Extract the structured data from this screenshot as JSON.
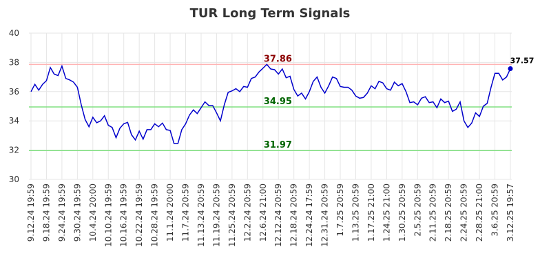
{
  "chart_data": {
    "type": "line",
    "title": "TUR Long Term Signals",
    "categories": [
      "9.12.24 19:59",
      null,
      null,
      null,
      "9.18.24 19:59",
      null,
      null,
      null,
      "9.24.24 19:59",
      null,
      null,
      null,
      "9.30.24 19:59",
      null,
      null,
      null,
      "10.4.24 20:00",
      null,
      null,
      null,
      "10.10.24 19:59",
      null,
      null,
      null,
      "10.16.24 19:59",
      null,
      null,
      null,
      "10.22.24 19:59",
      null,
      null,
      null,
      "10.28.24 19:59",
      null,
      null,
      null,
      "11.1.24 20:00",
      null,
      null,
      null,
      "11.7.24 20:59",
      null,
      null,
      null,
      "11.13.24 20:59",
      null,
      null,
      null,
      "11.19.24 20:59",
      null,
      null,
      null,
      "11.25.24 20:59",
      null,
      null,
      null,
      "12.2.24 20:59",
      null,
      null,
      null,
      "12.6.24 21:00",
      null,
      null,
      null,
      "12.12.24 20:59",
      null,
      null,
      null,
      "12.18.24 20:59",
      null,
      null,
      null,
      "12.24.24 17:59",
      null,
      null,
      null,
      "12.31.24 20:59",
      null,
      null,
      null,
      "1.7.25 20:59",
      null,
      null,
      null,
      "1.13.25 20:59",
      null,
      null,
      null,
      "1.17.25 21:00",
      null,
      null,
      null,
      "1.24.25 21:00",
      null,
      null,
      null,
      "1.30.25 20:59",
      null,
      null,
      null,
      "2.5.25 20:59",
      null,
      null,
      null,
      "2.11.25 20:59",
      null,
      null,
      null,
      "2.18.25 20:59",
      null,
      null,
      null,
      "2.24.25 20:59",
      null,
      null,
      null,
      "2.28.25 21:00",
      null,
      null,
      null,
      "3.6.25 20:59",
      null,
      null,
      null,
      "3.12.25 19:57"
    ],
    "values": [
      36.0,
      36.5,
      36.1,
      36.5,
      36.75,
      37.65,
      37.2,
      37.1,
      37.75,
      36.9,
      36.8,
      36.65,
      36.3,
      35.1,
      34.1,
      33.6,
      34.25,
      33.87,
      34.0,
      34.35,
      33.7,
      33.55,
      32.85,
      33.5,
      33.8,
      33.9,
      33.05,
      32.7,
      33.3,
      32.75,
      33.4,
      33.4,
      33.8,
      33.6,
      33.85,
      33.4,
      33.35,
      32.45,
      32.45,
      33.4,
      33.8,
      34.4,
      34.75,
      34.5,
      34.9,
      35.3,
      35.05,
      35.05,
      34.55,
      34.0,
      35.1,
      35.95,
      36.05,
      36.2,
      36.0,
      36.35,
      36.3,
      36.9,
      37.0,
      37.35,
      37.6,
      37.86,
      37.55,
      37.5,
      37.2,
      37.55,
      36.95,
      37.05,
      36.15,
      35.7,
      35.9,
      35.5,
      36.0,
      36.7,
      37.0,
      36.3,
      35.9,
      36.4,
      37.0,
      36.9,
      36.35,
      36.3,
      36.3,
      36.1,
      35.7,
      35.55,
      35.6,
      35.9,
      36.4,
      36.2,
      36.7,
      36.6,
      36.2,
      36.1,
      36.65,
      36.4,
      36.55,
      36.0,
      35.25,
      35.3,
      35.1,
      35.55,
      35.65,
      35.25,
      35.3,
      34.9,
      35.5,
      35.25,
      35.35,
      34.65,
      34.8,
      35.3,
      34.0,
      33.55,
      33.85,
      34.55,
      34.3,
      35.0,
      35.2,
      36.3,
      37.25,
      37.25,
      36.8,
      37.0,
      37.57
    ],
    "color": "#0000cc",
    "ylim": [
      30,
      40
    ],
    "yticks": [
      30,
      32,
      34,
      36,
      38,
      40
    ],
    "grid": true,
    "reference_lines": [
      {
        "value": 37.86,
        "color": "#ffb3b3",
        "label_color": "#8b0000"
      },
      {
        "value": 34.95,
        "color": "#80e080",
        "label_color": "#006400"
      },
      {
        "value": 31.97,
        "color": "#80e080",
        "label_color": "#006400"
      }
    ]
  }
}
